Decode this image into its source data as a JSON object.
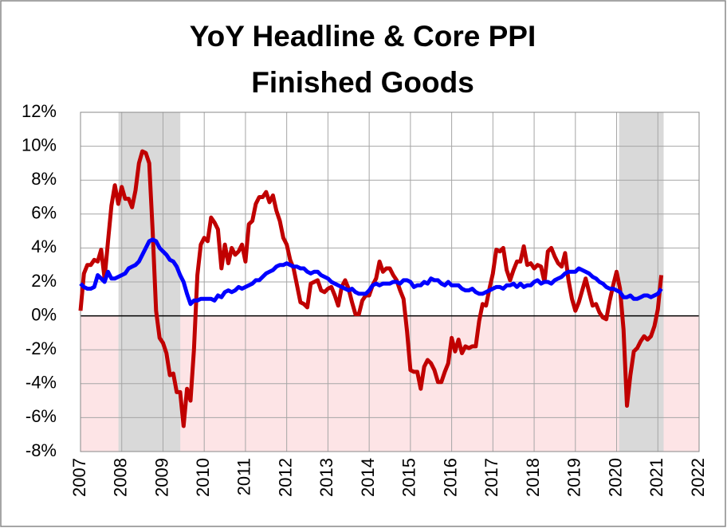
{
  "chart_data": {
    "type": "line",
    "title": [
      "YoY Headline & Core PPI",
      "Finished Goods"
    ],
    "x": [
      2007,
      2007.083,
      2007.167,
      2007.25,
      2007.333,
      2007.417,
      2007.5,
      2007.583,
      2007.667,
      2007.75,
      2007.833,
      2007.917,
      2008,
      2008.083,
      2008.167,
      2008.25,
      2008.333,
      2008.417,
      2008.5,
      2008.583,
      2008.667,
      2008.75,
      2008.833,
      2008.917,
      2009,
      2009.083,
      2009.167,
      2009.25,
      2009.333,
      2009.417,
      2009.5,
      2009.583,
      2009.667,
      2009.75,
      2009.833,
      2009.917,
      2010,
      2010.083,
      2010.167,
      2010.25,
      2010.333,
      2010.417,
      2010.5,
      2010.583,
      2010.667,
      2010.75,
      2010.833,
      2010.917,
      2011,
      2011.083,
      2011.167,
      2011.25,
      2011.333,
      2011.417,
      2011.5,
      2011.583,
      2011.667,
      2011.75,
      2011.833,
      2011.917,
      2012,
      2012.083,
      2012.167,
      2012.25,
      2012.333,
      2012.417,
      2012.5,
      2012.583,
      2012.667,
      2012.75,
      2012.833,
      2012.917,
      2013,
      2013.083,
      2013.167,
      2013.25,
      2013.333,
      2013.417,
      2013.5,
      2013.583,
      2013.667,
      2013.75,
      2013.833,
      2013.917,
      2014,
      2014.083,
      2014.167,
      2014.25,
      2014.333,
      2014.417,
      2014.5,
      2014.583,
      2014.667,
      2014.75,
      2014.833,
      2014.917,
      2015,
      2015.083,
      2015.167,
      2015.25,
      2015.333,
      2015.417,
      2015.5,
      2015.583,
      2015.667,
      2015.75,
      2015.833,
      2015.917,
      2016,
      2016.083,
      2016.167,
      2016.25,
      2016.333,
      2016.417,
      2016.5,
      2016.583,
      2016.667,
      2016.75,
      2016.833,
      2016.917,
      2017,
      2017.083,
      2017.167,
      2017.25,
      2017.333,
      2017.417,
      2017.5,
      2017.583,
      2017.667,
      2017.75,
      2017.833,
      2017.917,
      2018,
      2018.083,
      2018.167,
      2018.25,
      2018.333,
      2018.417,
      2018.5,
      2018.583,
      2018.667,
      2018.75,
      2018.833,
      2018.917,
      2019,
      2019.083,
      2019.167,
      2019.25,
      2019.333,
      2019.417,
      2019.5,
      2019.583,
      2019.667,
      2019.75,
      2019.833,
      2019.917,
      2020,
      2020.083,
      2020.167,
      2020.25,
      2020.333,
      2020.417,
      2020.5,
      2020.583,
      2020.667,
      2020.75,
      2020.833,
      2020.917,
      2021,
      2021.083
    ],
    "series": [
      {
        "color": "#c00000",
        "values": [
          0.3,
          2.5,
          3.0,
          3.0,
          3.3,
          3.2,
          3.9,
          2.2,
          4.4,
          6.5,
          7.7,
          6.6,
          7.6,
          6.9,
          6.9,
          6.4,
          7.4,
          9.0,
          9.7,
          9.6,
          9.0,
          5.0,
          0.3,
          -1.3,
          -1.6,
          -2.2,
          -3.5,
          -3.4,
          -4.5,
          -4.5,
          -6.5,
          -4.3,
          -5.0,
          -2.0,
          2.4,
          4.2,
          4.6,
          4.4,
          5.8,
          5.5,
          5.1,
          2.8,
          4.2,
          3.1,
          4.0,
          3.6,
          3.8,
          4.2,
          3.2,
          5.4,
          5.6,
          6.6,
          7.0,
          7.0,
          7.3,
          6.7,
          7.1,
          6.2,
          5.6,
          4.6,
          4.2,
          3.3,
          2.8,
          1.8,
          0.8,
          0.7,
          0.5,
          1.9,
          2.0,
          2.1,
          1.5,
          1.4,
          1.6,
          1.7,
          1.2,
          0.6,
          1.7,
          2.1,
          1.6,
          0.8,
          0.1,
          0.1,
          0.9,
          1.2,
          1.2,
          1.8,
          2.2,
          3.2,
          2.6,
          2.8,
          2.8,
          2.4,
          2.1,
          1.5,
          1.0,
          -0.9,
          -3.2,
          -3.3,
          -3.3,
          -4.3,
          -3.0,
          -2.6,
          -2.8,
          -3.2,
          -3.9,
          -3.9,
          -3.3,
          -2.8,
          -1.3,
          -2.1,
          -1.4,
          -2.2,
          -1.8,
          -1.9,
          -1.8,
          -1.8,
          -0.3,
          0.7,
          0.6,
          1.6,
          2.5,
          3.9,
          3.8,
          4.0,
          2.7,
          2.1,
          2.7,
          3.2,
          3.2,
          4.1,
          3.0,
          3.1,
          2.8,
          3.0,
          2.9,
          2.0,
          3.8,
          4.0,
          3.5,
          3.1,
          2.9,
          3.7,
          2.1,
          1.0,
          0.3,
          0.8,
          1.5,
          2.2,
          1.4,
          0.6,
          0.7,
          0.2,
          -0.1,
          -0.2,
          0.9,
          1.8,
          2.6,
          1.6,
          -0.8,
          -5.3,
          -3.5,
          -2.1,
          -1.9,
          -1.5,
          -1.2,
          -1.4,
          -1.2,
          -0.6,
          0.4,
          2.4
        ]
      },
      {
        "color": "#0000ff",
        "values": [
          1.9,
          1.7,
          1.6,
          1.6,
          1.7,
          2.4,
          2.2,
          2.0,
          2.6,
          2.2,
          2.2,
          2.3,
          2.4,
          2.5,
          2.8,
          2.9,
          3.0,
          3.2,
          3.6,
          4.0,
          4.4,
          4.5,
          4.4,
          4.0,
          3.8,
          3.6,
          3.3,
          3.2,
          2.9,
          2.4,
          2.0,
          1.3,
          0.7,
          0.9,
          0.9,
          1.0,
          1.0,
          1.0,
          1.0,
          0.9,
          1.2,
          1.1,
          1.4,
          1.5,
          1.4,
          1.5,
          1.7,
          1.6,
          1.7,
          1.8,
          1.9,
          2.1,
          2.1,
          2.3,
          2.5,
          2.6,
          2.7,
          2.9,
          3.0,
          3.0,
          3.1,
          3.0,
          2.9,
          2.9,
          2.8,
          2.8,
          2.6,
          2.5,
          2.6,
          2.6,
          2.4,
          2.3,
          2.2,
          2.0,
          1.9,
          1.8,
          1.7,
          1.6,
          1.5,
          1.6,
          1.4,
          1.3,
          1.3,
          1.3,
          1.5,
          1.8,
          1.9,
          1.8,
          1.9,
          1.9,
          1.9,
          2.0,
          2.0,
          1.9,
          2.1,
          2.1,
          2.0,
          1.7,
          1.8,
          1.8,
          2.0,
          1.9,
          2.2,
          2.1,
          2.1,
          1.9,
          1.8,
          2.0,
          1.8,
          1.8,
          1.8,
          1.6,
          1.5,
          1.5,
          1.6,
          1.4,
          1.3,
          1.3,
          1.4,
          1.5,
          1.6,
          1.7,
          1.7,
          1.6,
          1.8,
          1.8,
          1.9,
          1.7,
          1.9,
          1.7,
          1.8,
          1.8,
          2.0,
          2.1,
          1.9,
          2.0,
          2.0,
          1.9,
          2.1,
          2.2,
          2.3,
          2.5,
          2.6,
          2.6,
          2.6,
          2.8,
          2.7,
          2.6,
          2.5,
          2.3,
          2.2,
          2.0,
          1.9,
          1.7,
          1.6,
          1.6,
          1.5,
          1.4,
          1.1,
          1.1,
          1.2,
          1.0,
          1.0,
          1.1,
          1.2,
          1.2,
          1.1,
          1.2,
          1.3,
          1.6
        ]
      }
    ],
    "shaded_ranges": [
      [
        2007.92,
        2009.42
      ],
      [
        2020.06,
        2021.14
      ]
    ],
    "shade_color": "#d9d9d9",
    "negative_fill": "#fde4e6",
    "xlim": [
      2007,
      2022
    ],
    "xticks": [
      2007,
      2008,
      2009,
      2010,
      2011,
      2012,
      2013,
      2014,
      2015,
      2016,
      2017,
      2018,
      2019,
      2020,
      2021,
      2022
    ],
    "ylim": [
      -8,
      12
    ],
    "yticks": [
      {
        "value": -8,
        "label": "-8%"
      },
      {
        "value": -6,
        "label": "-6%"
      },
      {
        "value": -4,
        "label": "-4%"
      },
      {
        "value": -2,
        "label": "-2%"
      },
      {
        "value": 0,
        "label": "0%"
      },
      {
        "value": 2,
        "label": "2%"
      },
      {
        "value": 4,
        "label": "4%"
      },
      {
        "value": 6,
        "label": "6%"
      },
      {
        "value": 8,
        "label": "8%"
      },
      {
        "value": 10,
        "label": "10%"
      },
      {
        "value": 12,
        "label": "12%"
      }
    ],
    "grid": true
  }
}
